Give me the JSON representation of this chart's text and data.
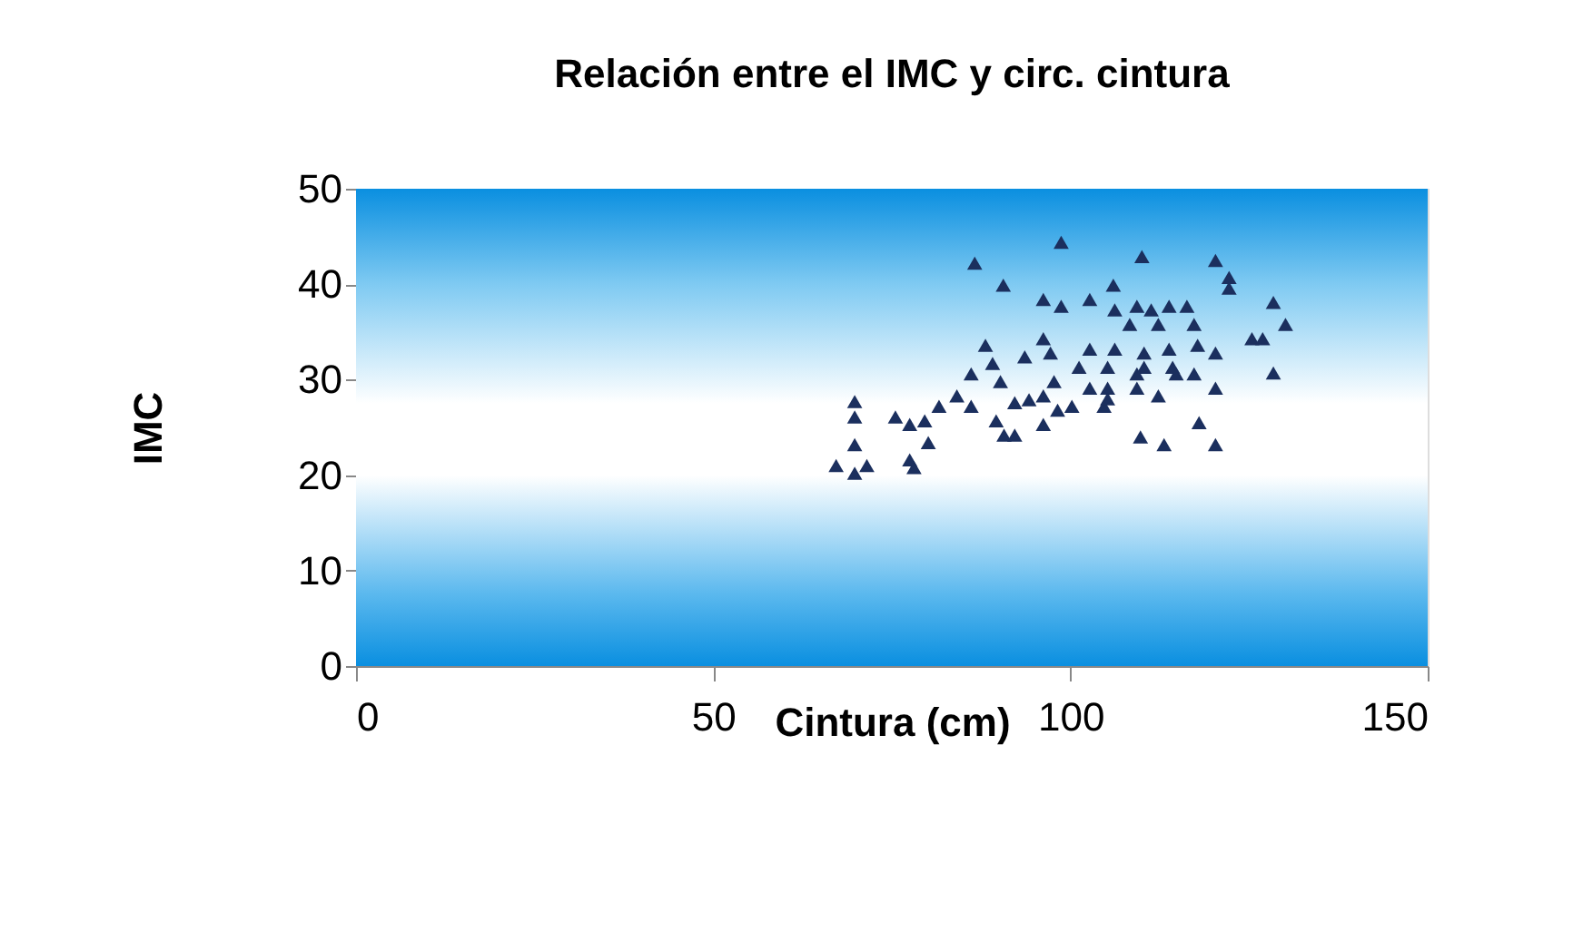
{
  "chart_data": {
    "type": "scatter",
    "title": "Relación entre el IMC y circ. cintura",
    "xlabel": "Cintura (cm)",
    "ylabel": "IMC",
    "xlim": [
      0,
      150
    ],
    "xticks": [
      0,
      50,
      100,
      150
    ],
    "ylim": [
      0,
      50
    ],
    "yticks": [
      0,
      10,
      20,
      30,
      40,
      50
    ],
    "marker": "triangle",
    "series": [
      {
        "color": "#1b2f5e",
        "x": [
          86.6,
          98.7,
          110,
          90.6,
          120.3,
          122.2,
          122.2,
          96.2,
          98.7,
          102.7,
          106,
          106.2,
          109.3,
          111.3,
          113.8,
          116.3,
          108.3,
          112.3,
          117.3,
          128.4,
          130.1,
          125.4,
          126.9,
          120.3,
          117.8,
          113.8,
          110.3,
          106.2,
          102.7,
          96.2,
          88.1,
          93.6,
          97.2,
          101.2,
          105.2,
          109.3,
          114.8,
          117.3,
          128.4,
          120.3,
          112.3,
          104.7,
          100.2,
          96.2,
          94.2,
          90.2,
          86.1,
          84.1,
          86.1,
          89.6,
          92.2,
          90.7,
          81.6,
          79.6,
          77.5,
          75.5,
          80.1,
          77.5,
          78.1,
          69.8,
          69.8,
          69.8,
          67.2,
          69.8,
          71.5,
          109.8,
          113.1,
          120.3,
          118,
          97.7,
          105.2,
          110.3,
          102.7,
          96.2,
          109.3,
          92.2,
          98.2,
          105.2,
          114.3,
          89.1
        ],
        "values": [
          42.2,
          44.4,
          42.9,
          39.9,
          42.5,
          40.7,
          39.6,
          38.4,
          37.7,
          38.4,
          39.9,
          37.3,
          37.7,
          37.3,
          37.7,
          37.7,
          35.8,
          35.8,
          35.8,
          38.1,
          35.8,
          34.3,
          34.3,
          32.8,
          33.6,
          33.2,
          32.8,
          33.2,
          33.2,
          34.3,
          33.6,
          32.4,
          32.8,
          31.3,
          31.3,
          30.6,
          30.6,
          30.6,
          30.7,
          29.1,
          28.3,
          27.2,
          27.2,
          25.3,
          27.9,
          29.8,
          30.6,
          28.3,
          27.2,
          25.7,
          24.2,
          24.2,
          27.2,
          25.7,
          25.3,
          26.1,
          23.4,
          21.6,
          20.8,
          27.7,
          26.1,
          23.2,
          21,
          20.2,
          21,
          24,
          23.2,
          23.2,
          25.5,
          29.8,
          29.1,
          31.3,
          29.1,
          28.3,
          29.1,
          27.6,
          26.8,
          28,
          31.3,
          31.7
        ]
      }
    ]
  }
}
